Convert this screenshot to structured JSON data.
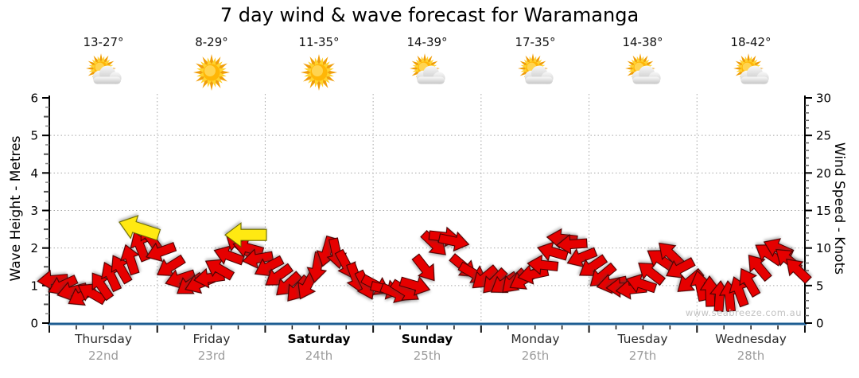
{
  "title": "7 day wind & wave forecast for Waramanga",
  "watermark": "www.seabreeze.com.au",
  "days": [
    {
      "name": "Thursday",
      "date": "22nd",
      "temp": "13-27°",
      "icon": "sun-cloud",
      "bold": false
    },
    {
      "name": "Friday",
      "date": "23rd",
      "temp": "8-29°",
      "icon": "sun",
      "bold": false
    },
    {
      "name": "Saturday",
      "date": "24th",
      "temp": "11-35°",
      "icon": "sun",
      "bold": true
    },
    {
      "name": "Sunday",
      "date": "25th",
      "temp": "14-39°",
      "icon": "sun-cloud",
      "bold": true
    },
    {
      "name": "Monday",
      "date": "26th",
      "temp": "17-35°",
      "icon": "sun-cloud",
      "bold": false
    },
    {
      "name": "Tuesday",
      "date": "27th",
      "temp": "14-38°",
      "icon": "sun-cloud",
      "bold": false
    },
    {
      "name": "Wednesday",
      "date": "28th",
      "temp": "18-42°",
      "icon": "sun-cloud",
      "bold": false
    }
  ],
  "left_axis": {
    "title": "Wave Height - Metres",
    "min": 0,
    "max": 6,
    "tick_labels": [
      "0",
      "1",
      "2",
      "3",
      "4",
      "5",
      "6"
    ]
  },
  "right_axis": {
    "title": "Wind Speed - Knots",
    "min": 0,
    "max": 30,
    "tick_labels": [
      "0",
      "5",
      "10",
      "15",
      "20",
      "25",
      "30"
    ]
  },
  "colors": {
    "arrow_fill": "#e60000",
    "arrow_outline": "#4a0000",
    "special_arrow_fill": "#ffe912",
    "special_arrow_outline": "#6b6b00",
    "bottom_axis": "#1e5d92",
    "grid": "#a8a8a8",
    "axis": "#000000",
    "day_date": "#9c9c9c",
    "watermark": "#c3c3c3"
  },
  "chart_data": {
    "type": "wind-arrows",
    "title": "7 day wind & wave forecast for Waramanga",
    "x_categories": [
      "Thursday 22nd",
      "Friday 23rd",
      "Saturday 24th",
      "Sunday 25th",
      "Monday 26th",
      "Tuesday 27th",
      "Wednesday 28th"
    ],
    "y_left": {
      "label": "Wave Height - Metres",
      "range": [
        0,
        6
      ]
    },
    "y_right": {
      "label": "Wind Speed - Knots",
      "range": [
        0,
        30
      ]
    },
    "knots_per_metre": 5,
    "grid": "dotted, horizontal at 1-5 m, vertical at day boundaries",
    "arrow_format": [
      "day_index",
      "fraction_of_day",
      "wave_height_m",
      "direction_css_deg"
    ],
    "arrows": [
      [
        0,
        0.03,
        1.15,
        175
      ],
      [
        0,
        0.12,
        1.0,
        155
      ],
      [
        0,
        0.21,
        0.85,
        165
      ],
      [
        0,
        0.3,
        0.72,
        150
      ],
      [
        0,
        0.39,
        0.8,
        210
      ],
      [
        0,
        0.48,
        1.0,
        235
      ],
      [
        0,
        0.57,
        1.25,
        245
      ],
      [
        0,
        0.66,
        1.45,
        240
      ],
      [
        0,
        0.75,
        1.7,
        252
      ],
      [
        0,
        0.84,
        2.05,
        248
      ],
      [
        0,
        0.93,
        2.3,
        235
      ],
      [
        1,
        0.03,
        1.9,
        160
      ],
      [
        1,
        0.12,
        1.5,
        148
      ],
      [
        1,
        0.21,
        1.18,
        162
      ],
      [
        1,
        0.3,
        1.02,
        145
      ],
      [
        1,
        0.39,
        1.05,
        158
      ],
      [
        1,
        0.48,
        1.2,
        172
      ],
      [
        1,
        0.57,
        1.45,
        210
      ],
      [
        1,
        0.66,
        1.8,
        200
      ],
      [
        1,
        0.75,
        2.1,
        218
      ],
      [
        1,
        0.84,
        2.0,
        195
      ],
      [
        1,
        0.93,
        1.72,
        170
      ],
      [
        2,
        0.03,
        1.5,
        152
      ],
      [
        2,
        0.12,
        1.25,
        144
      ],
      [
        2,
        0.21,
        1.02,
        138
      ],
      [
        2,
        0.3,
        0.9,
        130
      ],
      [
        2,
        0.39,
        1.0,
        118
      ],
      [
        2,
        0.48,
        1.48,
        100
      ],
      [
        2,
        0.57,
        1.9,
        106
      ],
      [
        2,
        0.66,
        1.85,
        78
      ],
      [
        2,
        0.75,
        1.55,
        62
      ],
      [
        2,
        0.84,
        1.2,
        70
      ],
      [
        2,
        0.93,
        1.0,
        64
      ],
      [
        3,
        0.03,
        1.0,
        28
      ],
      [
        3,
        0.12,
        0.9,
        14
      ],
      [
        3,
        0.21,
        0.8,
        22
      ],
      [
        3,
        0.3,
        0.85,
        32
      ],
      [
        3,
        0.39,
        1.0,
        16
      ],
      [
        3,
        0.48,
        1.45,
        52
      ],
      [
        3,
        0.57,
        2.1,
        44
      ],
      [
        3,
        0.66,
        2.3,
        6
      ],
      [
        3,
        0.75,
        2.18,
        12
      ],
      [
        3,
        0.84,
        1.5,
        40
      ],
      [
        3,
        0.93,
        1.32,
        30
      ],
      [
        4,
        0.03,
        1.2,
        140
      ],
      [
        4,
        0.12,
        1.1,
        134
      ],
      [
        4,
        0.21,
        1.05,
        146
      ],
      [
        4,
        0.3,
        1.1,
        136
      ],
      [
        4,
        0.39,
        1.15,
        150
      ],
      [
        4,
        0.48,
        1.3,
        168
      ],
      [
        4,
        0.57,
        1.55,
        186
      ],
      [
        4,
        0.66,
        1.9,
        196
      ],
      [
        4,
        0.75,
        2.25,
        186
      ],
      [
        4,
        0.84,
        2.1,
        176
      ],
      [
        4,
        0.93,
        1.75,
        158
      ],
      [
        5,
        0.03,
        1.5,
        146
      ],
      [
        5,
        0.12,
        1.25,
        140
      ],
      [
        5,
        0.21,
        1.05,
        168
      ],
      [
        5,
        0.3,
        0.95,
        178
      ],
      [
        5,
        0.39,
        0.9,
        174
      ],
      [
        5,
        0.48,
        1.05,
        198
      ],
      [
        5,
        0.57,
        1.35,
        218
      ],
      [
        5,
        0.66,
        1.7,
        214
      ],
      [
        5,
        0.75,
        1.85,
        224
      ],
      [
        5,
        0.84,
        1.45,
        152
      ],
      [
        5,
        0.93,
        1.1,
        140
      ],
      [
        6,
        0.03,
        1.0,
        258
      ],
      [
        6,
        0.12,
        0.85,
        268
      ],
      [
        6,
        0.21,
        0.72,
        274
      ],
      [
        6,
        0.3,
        0.72,
        264
      ],
      [
        6,
        0.39,
        0.85,
        250
      ],
      [
        6,
        0.48,
        1.1,
        240
      ],
      [
        6,
        0.57,
        1.5,
        230
      ],
      [
        6,
        0.66,
        1.85,
        214
      ],
      [
        6,
        0.75,
        2.0,
        204
      ],
      [
        6,
        0.84,
        1.7,
        220
      ],
      [
        6,
        0.93,
        1.42,
        224
      ]
    ],
    "special_arrows": [
      [
        0,
        0.83,
        2.52,
        198
      ],
      [
        1,
        0.82,
        2.35,
        180
      ]
    ]
  }
}
